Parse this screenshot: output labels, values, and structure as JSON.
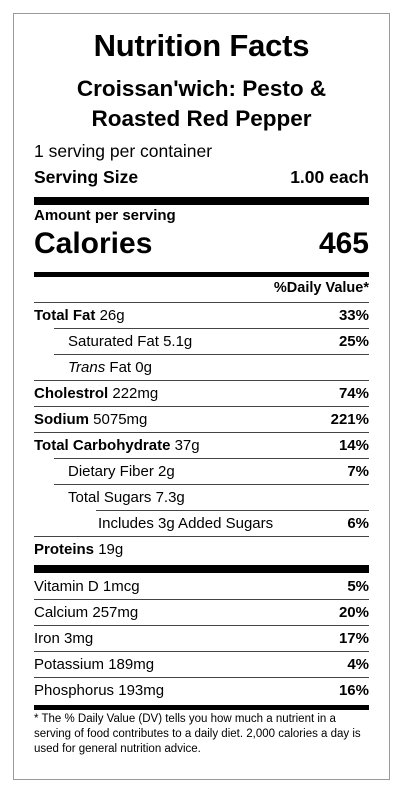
{
  "title": "Nutrition Facts",
  "product": {
    "line1": "Croissan'wich: Pesto &",
    "line2": "Roasted Red Pepper"
  },
  "servings_per_container": "1 serving per container",
  "serving_size": {
    "label": "Serving Size",
    "value": "1.00 each"
  },
  "amount_per_serving": "Amount per serving",
  "calories": {
    "label": "Calories",
    "value": "465"
  },
  "dv_header": "%Daily Value*",
  "nutrients": {
    "total_fat": {
      "label": "Total Fat",
      "amount": "26g",
      "pct": "33%"
    },
    "saturated_fat": {
      "label": "Saturated Fat",
      "amount": "5.1g",
      "pct": "25%"
    },
    "trans_fat": {
      "label_italic": "Trans",
      "label": "Fat",
      "amount": "0g"
    },
    "cholesterol": {
      "label": "Cholestrol",
      "amount": "222mg",
      "pct": "74%"
    },
    "sodium": {
      "label": "Sodium",
      "amount": "5075mg",
      "pct": "221%"
    },
    "total_carb": {
      "label": "Total Carbohydrate",
      "amount": "37g",
      "pct": "14%"
    },
    "dietary_fiber": {
      "label": "Dietary Fiber",
      "amount": "2g",
      "pct": "7%"
    },
    "total_sugars": {
      "label": "Total Sugars",
      "amount": "7.3g"
    },
    "added_sugars": {
      "label": "Includes 3g Added Sugars",
      "pct": "6%"
    },
    "protein": {
      "label": "Proteins",
      "amount": "19g"
    }
  },
  "vitamins": {
    "vitamin_d": {
      "label": "Vitamin D",
      "amount": "1mcg",
      "pct": "5%"
    },
    "calcium": {
      "label": "Calcium",
      "amount": "257mg",
      "pct": "20%"
    },
    "iron": {
      "label": "Iron",
      "amount": "3mg",
      "pct": "17%"
    },
    "potassium": {
      "label": "Potassium",
      "amount": "189mg",
      "pct": "4%"
    },
    "phosphorus": {
      "label": "Phosphorus",
      "amount": "193mg",
      "pct": "16%"
    }
  },
  "footnote": "* The % Daily Value (DV) tells you how much a nutrient in a serving of food contributes to a daily diet. 2,000 calories a day is used for general nutrition advice."
}
